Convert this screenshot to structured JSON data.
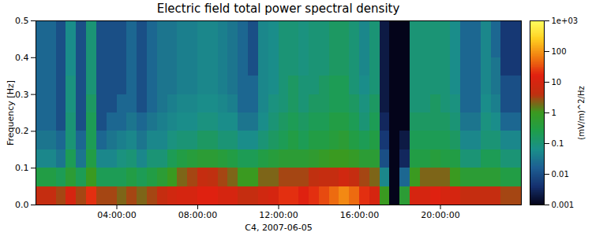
{
  "chart_data": {
    "type": "heatmap",
    "title": "Electric field total power spectral density",
    "xlabel": "C4, 2007-06-05",
    "ylabel": "Frequency [Hz]",
    "xlim": [
      0,
      24
    ],
    "xticks": [
      {
        "value": 4,
        "label": "04:00:00"
      },
      {
        "value": 8,
        "label": "08:00:00"
      },
      {
        "value": 12,
        "label": "12:00:00"
      },
      {
        "value": 16,
        "label": "16:00:00"
      },
      {
        "value": 20,
        "label": "20:00:00"
      }
    ],
    "ylim": [
      0,
      0.5
    ],
    "yticks": [
      {
        "value": 0,
        "label": "0.0"
      },
      0.1,
      0.2,
      0.3,
      0.4,
      0.5
    ],
    "x": [
      0,
      0.5,
      1,
      1.5,
      2,
      2.5,
      3,
      3.5,
      4,
      4.5,
      5,
      5.5,
      6,
      6.5,
      7,
      7.5,
      8,
      8.5,
      9,
      9.5,
      10,
      10.5,
      11,
      11.5,
      12,
      12.5,
      13,
      13.5,
      14,
      14.5,
      15,
      15.5,
      16,
      16.5,
      17,
      17.5,
      18,
      18.5,
      19,
      19.5,
      20,
      20.5,
      21,
      21.5,
      22,
      22.5,
      23,
      23.5
    ],
    "y": [
      0,
      0.05,
      0.1,
      0.15,
      0.2,
      0.25,
      0.3,
      0.35,
      0.4,
      0.45
    ],
    "cells": [
      [
        5,
        0.3,
        0.05,
        0.03,
        0.02,
        0.02,
        0.02,
        0.02,
        0.02,
        0.02
      ],
      [
        5,
        0.3,
        0.05,
        0.03,
        0.02,
        0.02,
        0.02,
        0.02,
        0.02,
        0.02
      ],
      [
        3,
        0.2,
        0.03,
        0.02,
        0.01,
        0.01,
        0.01,
        0.01,
        0.01,
        0.01
      ],
      [
        10,
        0.5,
        0.2,
        0.1,
        0.1,
        0.08,
        0.08,
        0.06,
        0.06,
        0.06
      ],
      [
        3,
        0.2,
        0.03,
        0.02,
        0.01,
        0.01,
        0.01,
        0.01,
        0.01,
        0.01
      ],
      [
        20,
        1,
        0.3,
        0.2,
        0.2,
        0.15,
        0.1,
        0.1,
        0.1,
        0.1
      ],
      [
        3,
        0.2,
        0.05,
        0.02,
        0.01,
        0.01,
        0.01,
        0.01,
        0.01,
        0.01
      ],
      [
        3,
        0.2,
        0.05,
        0.03,
        0.02,
        0.01,
        0.01,
        0.01,
        0.01,
        0.01
      ],
      [
        2,
        0.2,
        0.08,
        0.04,
        0.02,
        0.02,
        0.01,
        0.01,
        0.01,
        0.01
      ],
      [
        3,
        0.3,
        0.1,
        0.05,
        0.03,
        0.02,
        0.02,
        0.02,
        0.02,
        0.02
      ],
      [
        2,
        0.2,
        0.05,
        0.03,
        0.02,
        0.01,
        0.01,
        0.01,
        0.01,
        0.01
      ],
      [
        3,
        0.3,
        0.1,
        0.05,
        0.03,
        0.02,
        0.02,
        0.02,
        0.02,
        0.02
      ],
      [
        5,
        0.5,
        0.1,
        0.05,
        0.04,
        0.03,
        0.03,
        0.03,
        0.03,
        0.03
      ],
      [
        8,
        1,
        0.2,
        0.08,
        0.05,
        0.04,
        0.03,
        0.03,
        0.03,
        0.03
      ],
      [
        10,
        2,
        0.3,
        0.1,
        0.06,
        0.05,
        0.04,
        0.04,
        0.04,
        0.04
      ],
      [
        10,
        3,
        0.4,
        0.1,
        0.06,
        0.05,
        0.04,
        0.04,
        0.04,
        0.04
      ],
      [
        15,
        5,
        0.5,
        0.15,
        0.08,
        0.06,
        0.05,
        0.05,
        0.05,
        0.05
      ],
      [
        15,
        4,
        0.5,
        0.15,
        0.08,
        0.06,
        0.05,
        0.05,
        0.05,
        0.05
      ],
      [
        10,
        3,
        0.4,
        0.1,
        0.06,
        0.05,
        0.04,
        0.04,
        0.04,
        0.04
      ],
      [
        10,
        2,
        0.3,
        0.1,
        0.06,
        0.04,
        0.03,
        0.03,
        0.03,
        0.03
      ],
      [
        5,
        1,
        0.2,
        0.06,
        0.03,
        0.02,
        0.02,
        0.02,
        0.02,
        0.02
      ],
      [
        5,
        1,
        0.2,
        0.06,
        0.03,
        0.02,
        0.02,
        0.01,
        0.01,
        0.01
      ],
      [
        8,
        2,
        0.3,
        0.1,
        0.06,
        0.05,
        0.05,
        0.05,
        0.05,
        0.05
      ],
      [
        10,
        2,
        0.4,
        0.15,
        0.1,
        0.08,
        0.06,
        0.06,
        0.06,
        0.06
      ],
      [
        20,
        3,
        0.5,
        0.2,
        0.15,
        0.1,
        0.1,
        0.1,
        0.1,
        0.1
      ],
      [
        20,
        3,
        0.5,
        0.3,
        0.2,
        0.15,
        0.15,
        0.1,
        0.1,
        0.1
      ],
      [
        15,
        3,
        0.5,
        0.2,
        0.15,
        0.1,
        0.1,
        0.08,
        0.08,
        0.08
      ],
      [
        20,
        4,
        0.6,
        0.3,
        0.2,
        0.15,
        0.1,
        0.1,
        0.1,
        0.1
      ],
      [
        30,
        5,
        0.8,
        0.3,
        0.2,
        0.15,
        0.15,
        0.1,
        0.1,
        0.1
      ],
      [
        50,
        5,
        1,
        0.4,
        0.3,
        0.2,
        0.2,
        0.15,
        0.15,
        0.15
      ],
      [
        80,
        8,
        1,
        0.5,
        0.3,
        0.2,
        0.2,
        0.15,
        0.15,
        0.15
      ],
      [
        50,
        5,
        0.8,
        0.3,
        0.2,
        0.15,
        0.1,
        0.1,
        0.1,
        0.1
      ],
      [
        20,
        3,
        0.5,
        0.2,
        0.1,
        0.08,
        0.06,
        0.05,
        0.05,
        0.05
      ],
      [
        10,
        2,
        0.5,
        0.3,
        0.2,
        0.15,
        0.1,
        0.1,
        0.1,
        0.1
      ],
      [
        1,
        0.05,
        0.01,
        0.005,
        0.003,
        0.002,
        0.002,
        0.002,
        0.002,
        0.002
      ],
      [
        0.001,
        0.001,
        0.001,
        0.001,
        0.001,
        0.001,
        0.001,
        0.001,
        0.001,
        0.001
      ],
      [
        0.5,
        0.02,
        0.003,
        0.002,
        0.001,
        0.001,
        0.001,
        0.001,
        0.001,
        0.001
      ],
      [
        10,
        1,
        0.3,
        0.2,
        0.15,
        0.1,
        0.1,
        0.1,
        0.1,
        0.1
      ],
      [
        10,
        2,
        0.3,
        0.2,
        0.15,
        0.1,
        0.1,
        0.1,
        0.1,
        0.1
      ],
      [
        15,
        2,
        0.4,
        0.2,
        0.15,
        0.15,
        0.1,
        0.1,
        0.1,
        0.1
      ],
      [
        10,
        2,
        0.3,
        0.2,
        0.15,
        0.1,
        0.1,
        0.1,
        0.1,
        0.1
      ],
      [
        10,
        1,
        0.3,
        0.15,
        0.1,
        0.08,
        0.06,
        0.06,
        0.06,
        0.06
      ],
      [
        5,
        0.5,
        0.1,
        0.05,
        0.03,
        0.02,
        0.02,
        0.02,
        0.02,
        0.02
      ],
      [
        5,
        0.5,
        0.1,
        0.05,
        0.03,
        0.02,
        0.02,
        0.02,
        0.02,
        0.02
      ],
      [
        5,
        0.5,
        0.2,
        0.1,
        0.08,
        0.06,
        0.05,
        0.05,
        0.05,
        0.05
      ],
      [
        5,
        0.5,
        0.2,
        0.1,
        0.06,
        0.04,
        0.03,
        0.03,
        0.02,
        0.02
      ],
      [
        3,
        0.3,
        0.1,
        0.05,
        0.02,
        0.01,
        0.01,
        0.005,
        0.005,
        0.005
      ],
      [
        3,
        0.3,
        0.1,
        0.05,
        0.02,
        0.01,
        0.01,
        0.005,
        0.005,
        0.005
      ]
    ],
    "colorbar": {
      "label": "(mV/m)^2/Hz",
      "log": true,
      "lim": [
        0.001,
        1000
      ],
      "ticks": [
        0.001,
        0.01,
        0.1,
        1,
        10,
        100,
        {
          "value": 1000,
          "label": "1e+03"
        }
      ]
    }
  }
}
